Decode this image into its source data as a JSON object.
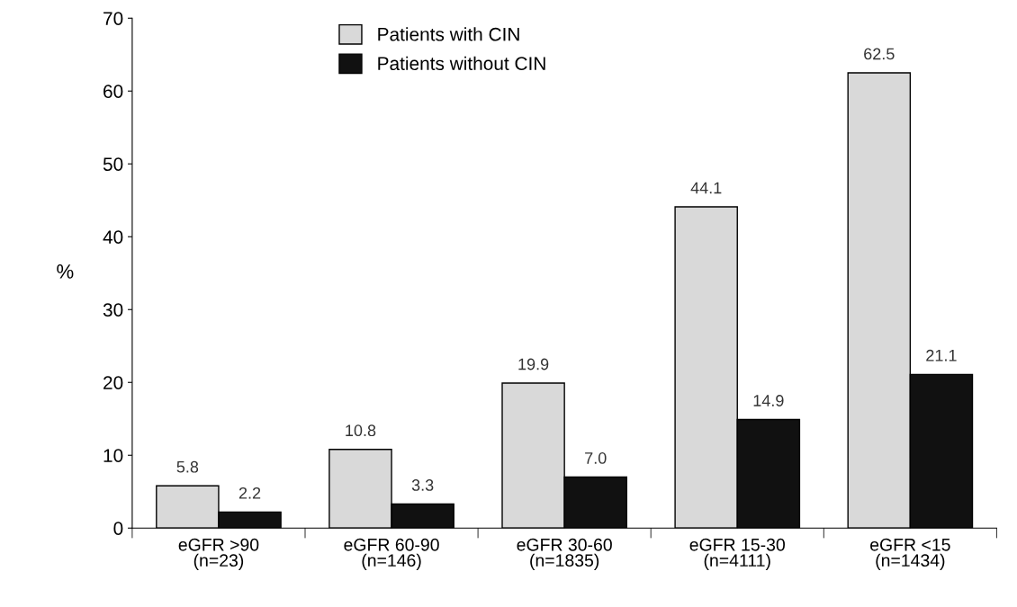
{
  "chart_data": {
    "type": "bar",
    "ylabel": "%",
    "categories": [
      "eGFR >90\n(n=23)",
      "eGFR 60-90\n(n=146)",
      "eGFR 30-60\n(n=1835)",
      "eGFR 15-30\n(n=4111)",
      "eGFR <15\n(n=1434)"
    ],
    "series": [
      {
        "name": "Patients with CIN",
        "color": "#d9d9d9",
        "values": [
          5.8,
          10.8,
          19.9,
          44.1,
          62.5
        ],
        "value_labels": [
          "5.8",
          "10.8",
          "19.9",
          "44.1",
          "62.5"
        ]
      },
      {
        "name": "Patients without CIN",
        "color": "#111111",
        "values": [
          2.2,
          3.3,
          7.0,
          14.9,
          21.1
        ],
        "value_labels": [
          "2.2",
          "3.3",
          "7.0",
          "14.9",
          "21.1"
        ]
      }
    ],
    "ylim": [
      0,
      70
    ],
    "yticks": [
      0,
      10,
      20,
      30,
      40,
      50,
      60,
      70
    ],
    "grid": false,
    "legend": "top left"
  }
}
